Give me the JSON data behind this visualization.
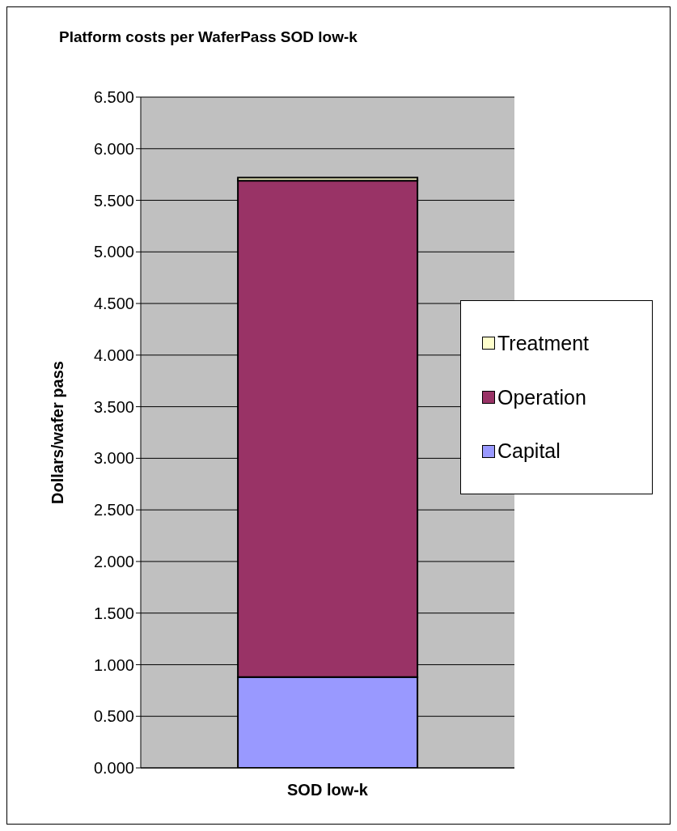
{
  "chart_data": {
    "type": "bar",
    "title": "Platform costs per WaferPass SOD low-k",
    "ylabel": "Dollars/wafer pass",
    "categories": [
      "SOD low-k"
    ],
    "stacked": true,
    "series": [
      {
        "name": "Capital",
        "color": "#9999ff",
        "values": [
          0.88
        ]
      },
      {
        "name": "Operation",
        "color": "#993366",
        "values": [
          4.81
        ]
      },
      {
        "name": "Treatment",
        "color": "#ffffcc",
        "values": [
          0.03
        ]
      }
    ],
    "ylim": [
      0,
      6.5
    ],
    "yticks": [
      {
        "value": 0,
        "label": "0.000"
      },
      {
        "value": 0.5,
        "label": "0.500"
      },
      {
        "value": 1,
        "label": "1.000"
      },
      {
        "value": 1.5,
        "label": "1.500"
      },
      {
        "value": 2,
        "label": "2.000"
      },
      {
        "value": 2.5,
        "label": "2.500"
      },
      {
        "value": 3,
        "label": "3.000"
      },
      {
        "value": 3.5,
        "label": "3.500"
      },
      {
        "value": 4,
        "label": "4.000"
      },
      {
        "value": 4.5,
        "label": "4.500"
      },
      {
        "value": 5,
        "label": "5.000"
      },
      {
        "value": 5.5,
        "label": "5.500"
      },
      {
        "value": 6,
        "label": "6.000"
      },
      {
        "value": 6.5,
        "label": "6.500"
      }
    ],
    "grid": "y",
    "legend": "right"
  }
}
